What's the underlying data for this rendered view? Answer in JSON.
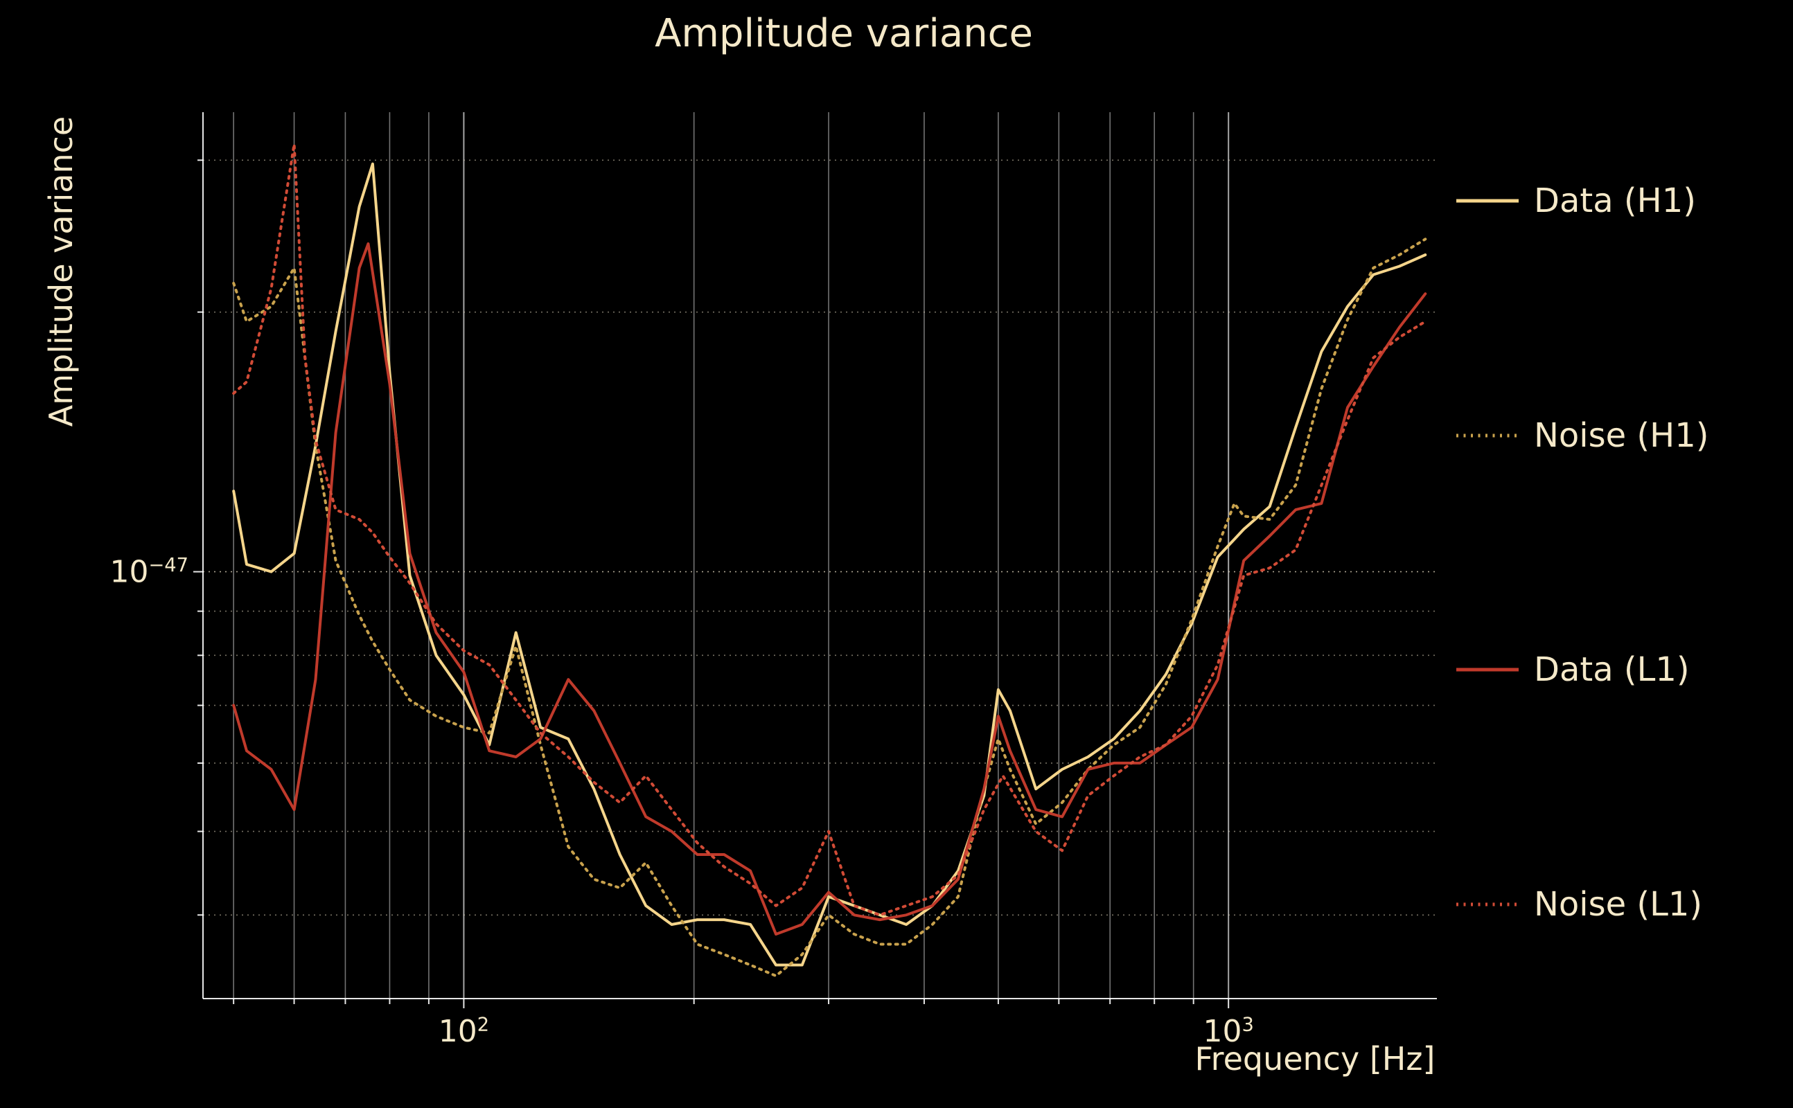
{
  "chart_data": {
    "type": "line",
    "title": "Amplitude variance",
    "xlabel": "Frequency [Hz]",
    "ylabel": "Amplitude variance",
    "x_scale": "log",
    "y_scale": "log",
    "xlim": [
      45.6,
      1873
    ],
    "ylim": [
      3.2e-48,
      3.41e-47
    ],
    "grid": "on",
    "legend_position": "right",
    "x_ticks": [
      {
        "base": "10",
        "exp": "2",
        "value": 100
      },
      {
        "base": "10",
        "exp": "3",
        "value": 1000
      }
    ],
    "y_ticks": [
      {
        "base": "10",
        "exp": "−47",
        "value": 1e-47
      }
    ],
    "colors": {
      "background": "#000000",
      "text": "#f5e9c9",
      "grid_vertical": "#ffffff",
      "grid_horizontal": "#d8cfb8",
      "spine": "#ffffff"
    },
    "series": [
      {
        "id": "data-h1",
        "name": "Data (H1)",
        "color": "#f5d58b",
        "line_style": "solid",
        "points": [
          [
            50,
            1.24e-47
          ],
          [
            52,
            1.02e-47
          ],
          [
            56,
            1e-47
          ],
          [
            60,
            1.05e-47
          ],
          [
            64,
            1.4e-47
          ],
          [
            68,
            1.9e-47
          ],
          [
            73,
            2.65e-47
          ],
          [
            76,
            2.97e-47
          ],
          [
            80,
            1.7e-47
          ],
          [
            85,
            9.9e-48
          ],
          [
            92,
            8e-48
          ],
          [
            100,
            7.2e-48
          ],
          [
            108,
            6.3e-48
          ],
          [
            117,
            8.5e-48
          ],
          [
            126,
            6.6e-48
          ],
          [
            137,
            6.4e-48
          ],
          [
            148,
            5.6e-48
          ],
          [
            160,
            4.7e-48
          ],
          [
            173,
            4.1e-48
          ],
          [
            187,
            3.9e-48
          ],
          [
            202,
            3.95e-48
          ],
          [
            219,
            3.95e-48
          ],
          [
            237,
            3.9e-48
          ],
          [
            256,
            3.5e-48
          ],
          [
            277,
            3.5e-48
          ],
          [
            300,
            4.2e-48
          ],
          [
            324,
            4.1e-48
          ],
          [
            350,
            4e-48
          ],
          [
            379,
            3.9e-48
          ],
          [
            410,
            4.1e-48
          ],
          [
            443,
            4.5e-48
          ],
          [
            479,
            5.5e-48
          ],
          [
            500,
            7.3e-48
          ],
          [
            518,
            6.9e-48
          ],
          [
            560,
            5.6e-48
          ],
          [
            606,
            5.9e-48
          ],
          [
            655,
            6.1e-48
          ],
          [
            708,
            6.4e-48
          ],
          [
            766,
            6.9e-48
          ],
          [
            828,
            7.6e-48
          ],
          [
            895,
            8.7e-48
          ],
          [
            968,
            1.04e-47
          ],
          [
            1047,
            1.12e-47
          ],
          [
            1132,
            1.19e-47
          ],
          [
            1224,
            1.47e-47
          ],
          [
            1323,
            1.8e-47
          ],
          [
            1431,
            2.03e-47
          ],
          [
            1547,
            2.21e-47
          ],
          [
            1673,
            2.26e-47
          ],
          [
            1809,
            2.33e-47
          ]
        ]
      },
      {
        "id": "noise-h1",
        "name": "Noise (H1)",
        "color": "#c9a24d",
        "line_style": "dotted",
        "points": [
          [
            50,
            2.16e-47
          ],
          [
            52,
            1.95e-47
          ],
          [
            56,
            2.03e-47
          ],
          [
            60,
            2.25e-47
          ],
          [
            64,
            1.4e-47
          ],
          [
            68,
            1.03e-47
          ],
          [
            73,
            8.9e-48
          ],
          [
            76,
            8.3e-48
          ],
          [
            80,
            7.7e-48
          ],
          [
            85,
            7.1e-48
          ],
          [
            92,
            6.8e-48
          ],
          [
            100,
            6.6e-48
          ],
          [
            108,
            6.5e-48
          ],
          [
            117,
            8.2e-48
          ],
          [
            126,
            6.3e-48
          ],
          [
            137,
            4.8e-48
          ],
          [
            148,
            4.4e-48
          ],
          [
            160,
            4.3e-48
          ],
          [
            173,
            4.6e-48
          ],
          [
            187,
            4.1e-48
          ],
          [
            202,
            3.7e-48
          ],
          [
            219,
            3.6e-48
          ],
          [
            237,
            3.5e-48
          ],
          [
            256,
            3.4e-48
          ],
          [
            277,
            3.6e-48
          ],
          [
            300,
            4e-48
          ],
          [
            324,
            3.8e-48
          ],
          [
            350,
            3.7e-48
          ],
          [
            379,
            3.7e-48
          ],
          [
            410,
            3.9e-48
          ],
          [
            443,
            4.2e-48
          ],
          [
            479,
            5.6e-48
          ],
          [
            500,
            6.4e-48
          ],
          [
            518,
            5.9e-48
          ],
          [
            560,
            5.1e-48
          ],
          [
            606,
            5.4e-48
          ],
          [
            655,
            5.9e-48
          ],
          [
            708,
            6.3e-48
          ],
          [
            766,
            6.6e-48
          ],
          [
            828,
            7.4e-48
          ],
          [
            895,
            8.8e-48
          ],
          [
            968,
            1.07e-47
          ],
          [
            1018,
            1.2e-47
          ],
          [
            1047,
            1.16e-47
          ],
          [
            1132,
            1.15e-47
          ],
          [
            1224,
            1.26e-47
          ],
          [
            1323,
            1.63e-47
          ],
          [
            1431,
            1.96e-47
          ],
          [
            1547,
            2.25e-47
          ],
          [
            1673,
            2.33e-47
          ],
          [
            1809,
            2.43e-47
          ]
        ]
      },
      {
        "id": "data-l1",
        "name": "Data (L1)",
        "color": "#c03a2b",
        "line_style": "solid",
        "points": [
          [
            50,
            7e-48
          ],
          [
            52,
            6.2e-48
          ],
          [
            56,
            5.9e-48
          ],
          [
            60,
            5.3e-48
          ],
          [
            64,
            7.5e-48
          ],
          [
            68,
            1.45e-47
          ],
          [
            73,
            2.25e-47
          ],
          [
            75,
            2.4e-47
          ],
          [
            80,
            1.65e-47
          ],
          [
            85,
            1.05e-47
          ],
          [
            92,
            8.5e-48
          ],
          [
            100,
            7.65e-48
          ],
          [
            108,
            6.2e-48
          ],
          [
            117,
            6.1e-48
          ],
          [
            126,
            6.4e-48
          ],
          [
            137,
            7.5e-48
          ],
          [
            148,
            6.9e-48
          ],
          [
            160,
            6e-48
          ],
          [
            173,
            5.2e-48
          ],
          [
            187,
            5e-48
          ],
          [
            202,
            4.7e-48
          ],
          [
            219,
            4.7e-48
          ],
          [
            237,
            4.5e-48
          ],
          [
            256,
            3.8e-48
          ],
          [
            277,
            3.9e-48
          ],
          [
            300,
            4.25e-48
          ],
          [
            324,
            4e-48
          ],
          [
            350,
            3.95e-48
          ],
          [
            379,
            4e-48
          ],
          [
            410,
            4.1e-48
          ],
          [
            443,
            4.4e-48
          ],
          [
            479,
            5.6e-48
          ],
          [
            500,
            6.8e-48
          ],
          [
            518,
            6.2e-48
          ],
          [
            560,
            5.3e-48
          ],
          [
            606,
            5.2e-48
          ],
          [
            655,
            5.9e-48
          ],
          [
            708,
            6e-48
          ],
          [
            766,
            6e-48
          ],
          [
            828,
            6.3e-48
          ],
          [
            895,
            6.6e-48
          ],
          [
            968,
            7.5e-48
          ],
          [
            1047,
            1.03e-47
          ],
          [
            1132,
            1.1e-47
          ],
          [
            1224,
            1.18e-47
          ],
          [
            1323,
            1.2e-47
          ],
          [
            1431,
            1.55e-47
          ],
          [
            1547,
            1.73e-47
          ],
          [
            1673,
            1.92e-47
          ],
          [
            1809,
            2.1e-47
          ]
        ]
      },
      {
        "id": "noise-l1",
        "name": "Noise (L1)",
        "color": "#d14b36",
        "line_style": "dotted",
        "points": [
          [
            50,
            1.61e-47
          ],
          [
            52,
            1.66e-47
          ],
          [
            56,
            2.13e-47
          ],
          [
            60,
            3.13e-47
          ],
          [
            62,
            1.77e-47
          ],
          [
            64,
            1.42e-47
          ],
          [
            68,
            1.18e-47
          ],
          [
            73,
            1.15e-47
          ],
          [
            76,
            1.11e-47
          ],
          [
            80,
            1.04e-47
          ],
          [
            85,
            9.7e-48
          ],
          [
            92,
            8.7e-48
          ],
          [
            100,
            8.1e-48
          ],
          [
            108,
            7.8e-48
          ],
          [
            117,
            7.1e-48
          ],
          [
            126,
            6.5e-48
          ],
          [
            137,
            6.1e-48
          ],
          [
            148,
            5.7e-48
          ],
          [
            160,
            5.4e-48
          ],
          [
            173,
            5.8e-48
          ],
          [
            187,
            5.3e-48
          ],
          [
            202,
            4.85e-48
          ],
          [
            219,
            4.55e-48
          ],
          [
            237,
            4.35e-48
          ],
          [
            256,
            4.1e-48
          ],
          [
            277,
            4.3e-48
          ],
          [
            300,
            5e-48
          ],
          [
            324,
            4.1e-48
          ],
          [
            350,
            4e-48
          ],
          [
            379,
            4.1e-48
          ],
          [
            410,
            4.2e-48
          ],
          [
            443,
            4.45e-48
          ],
          [
            479,
            5.3e-48
          ],
          [
            507,
            5.8e-48
          ],
          [
            560,
            5e-48
          ],
          [
            606,
            4.75e-48
          ],
          [
            655,
            5.5e-48
          ],
          [
            708,
            5.8e-48
          ],
          [
            766,
            6.1e-48
          ],
          [
            828,
            6.3e-48
          ],
          [
            895,
            6.8e-48
          ],
          [
            968,
            7.8e-48
          ],
          [
            1047,
            9.9e-48
          ],
          [
            1132,
            1.01e-47
          ],
          [
            1224,
            1.06e-47
          ],
          [
            1323,
            1.26e-47
          ],
          [
            1431,
            1.5e-47
          ],
          [
            1547,
            1.77e-47
          ],
          [
            1673,
            1.87e-47
          ],
          [
            1809,
            1.95e-47
          ]
        ]
      }
    ]
  }
}
